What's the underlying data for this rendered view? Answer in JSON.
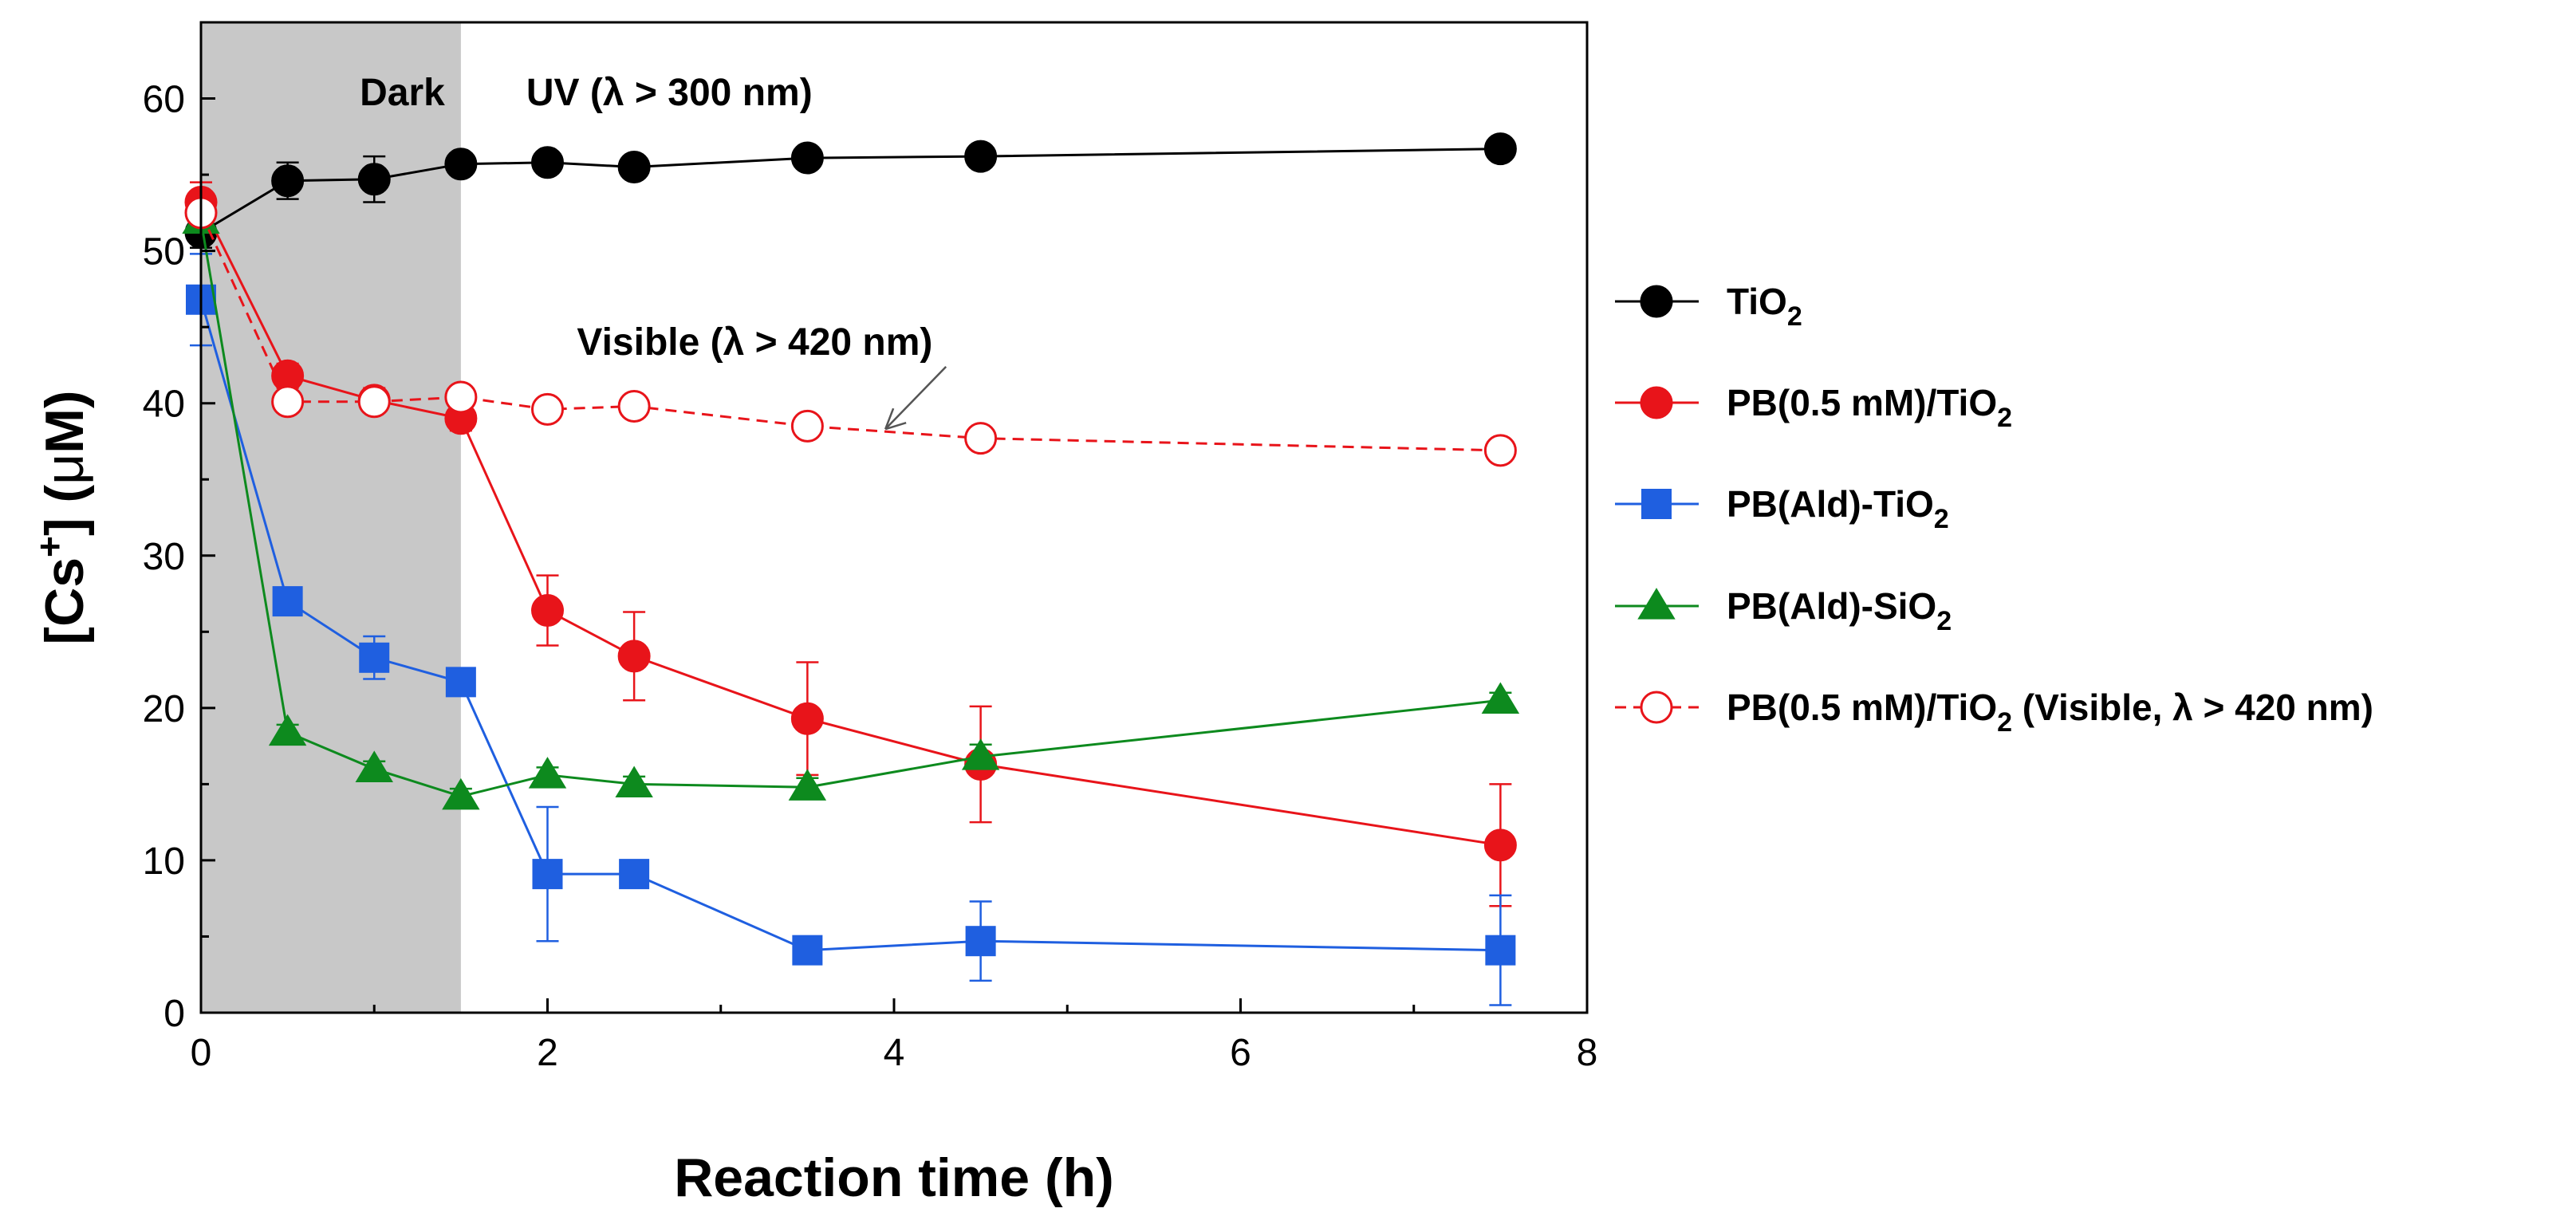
{
  "chart_data": {
    "type": "line",
    "xlabel": "Reaction time (h)",
    "ylabel_parts": {
      "open": "[Cs",
      "sup": "+",
      "close": "] (",
      "mu": "μ",
      "unit": "M)"
    },
    "xlim": [
      0,
      8
    ],
    "ylim": [
      0,
      65
    ],
    "xticks": [
      0,
      2,
      4,
      6,
      8
    ],
    "yticks": [
      0,
      10,
      20,
      30,
      40,
      50,
      60
    ],
    "grid": false,
    "legend_position": "right",
    "shaded_region": {
      "x": [
        0,
        1.5
      ],
      "color": "#c8c8c8",
      "label": "Dark"
    },
    "annotations": {
      "dark": "Dark",
      "uv": "UV (λ > 300 nm)",
      "visible": "Visible (λ > 420 nm)"
    },
    "series": [
      {
        "key": "tio2",
        "legend": {
          "main": "TiO",
          "sub": "2",
          "suffix": ""
        },
        "color": "#000000",
        "marker": "circle",
        "filled": true,
        "dash": false,
        "x": [
          0,
          0.5,
          1,
          1.5,
          2,
          2.5,
          3.5,
          4.5,
          7.5
        ],
        "y": [
          51.2,
          54.6,
          54.7,
          55.7,
          55.8,
          55.5,
          56.1,
          56.2,
          56.7
        ],
        "err": [
          1.0,
          1.2,
          1.5,
          0.5,
          0.5,
          0.5,
          0.5,
          0.5,
          0.5
        ]
      },
      {
        "key": "pb-tio2",
        "legend": {
          "main": "PB(0.5 mM)/TiO",
          "sub": "2",
          "suffix": ""
        },
        "color": "#e8141a",
        "marker": "circle",
        "filled": true,
        "dash": false,
        "x": [
          0,
          0.5,
          1,
          1.5,
          2,
          2.5,
          3.5,
          4.5,
          7.5
        ],
        "y": [
          53.2,
          41.8,
          40.2,
          39.0,
          26.4,
          23.4,
          19.3,
          16.3,
          11.0
        ],
        "err": [
          1.3,
          0.8,
          0.8,
          0.8,
          2.3,
          2.9,
          3.7,
          3.8,
          4.0
        ]
      },
      {
        "key": "pb-ald-tio2",
        "legend": {
          "main": "PB(Ald)-TiO",
          "sub": "2",
          "suffix": ""
        },
        "color": "#1f5fe0",
        "marker": "square",
        "filled": true,
        "dash": false,
        "x": [
          0,
          0.5,
          1,
          1.5,
          2,
          2.5,
          3.5,
          4.5,
          7.5
        ],
        "y": [
          46.8,
          27.0,
          23.3,
          21.7,
          9.1,
          9.1,
          4.1,
          4.7,
          4.1
        ],
        "err": [
          3.0,
          0.7,
          1.4,
          0.5,
          4.4,
          0.8,
          0.6,
          2.6,
          3.6
        ]
      },
      {
        "key": "pb-ald-sio2",
        "legend": {
          "main": "PB(Ald)-SiO",
          "sub": "2",
          "suffix": ""
        },
        "color": "#0d8a1e",
        "marker": "triangle",
        "filled": true,
        "dash": false,
        "x": [
          0,
          0.5,
          1,
          1.5,
          2,
          2.5,
          3.5,
          4.5,
          7.5
        ],
        "y": [
          52.0,
          18.4,
          16.0,
          14.2,
          15.6,
          15.0,
          14.8,
          16.8,
          20.5
        ],
        "err": [
          0.5,
          0.5,
          0.5,
          0.5,
          0.5,
          0.5,
          0.6,
          0.8,
          0.5
        ]
      },
      {
        "key": "pb-tio2-visible",
        "legend": {
          "main": "PB(0.5 mM)/TiO",
          "sub": "2",
          "suffix": " (Visible, λ > 420 nm)"
        },
        "color": "#e8141a",
        "marker": "circle",
        "filled": false,
        "dash": true,
        "x": [
          0,
          0.5,
          1,
          1.5,
          2,
          2.5,
          3.5,
          4.5,
          7.5
        ],
        "y": [
          52.5,
          40.1,
          40.1,
          40.4,
          39.6,
          39.8,
          38.5,
          37.7,
          36.9
        ],
        "err": [
          0.5,
          0.5,
          0.5,
          0.5,
          0.5,
          0.5,
          0.5,
          0.5,
          0.5
        ]
      }
    ]
  }
}
